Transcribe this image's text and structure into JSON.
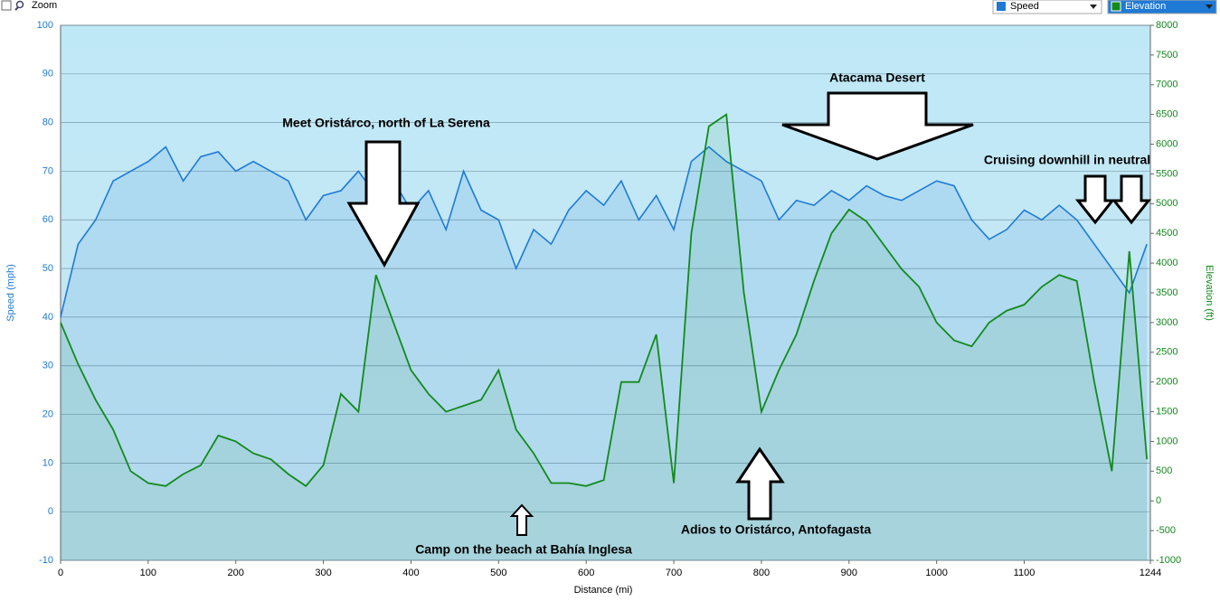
{
  "toolbar": {
    "zoom_label": "Zoom"
  },
  "chart_data": {
    "type": "line",
    "x_label": "Distance  (mi)",
    "y_label": "Speed (mph)",
    "y2_label": "Elevation (ft)",
    "x": [
      0,
      20,
      40,
      60,
      80,
      100,
      120,
      140,
      160,
      180,
      200,
      220,
      240,
      260,
      280,
      300,
      320,
      340,
      360,
      380,
      400,
      420,
      440,
      460,
      480,
      500,
      520,
      540,
      560,
      580,
      600,
      620,
      640,
      660,
      680,
      700,
      720,
      740,
      760,
      780,
      800,
      820,
      840,
      860,
      880,
      900,
      920,
      940,
      960,
      980,
      1000,
      1020,
      1040,
      1060,
      1080,
      1100,
      1120,
      1140,
      1160,
      1180,
      1200,
      1220,
      1240
    ],
    "series": [
      {
        "name": "Speed",
        "color": "#1f7ad6",
        "values": [
          40,
          55,
          60,
          68,
          70,
          72,
          75,
          68,
          73,
          74,
          70,
          72,
          70,
          68,
          60,
          65,
          66,
          70,
          65,
          68,
          62,
          66,
          58,
          70,
          62,
          60,
          50,
          58,
          55,
          62,
          66,
          63,
          68,
          60,
          65,
          58,
          72,
          75,
          72,
          70,
          68,
          60,
          64,
          63,
          66,
          64,
          67,
          65,
          64,
          66,
          68,
          67,
          60,
          56,
          58,
          62,
          60,
          63,
          60,
          55,
          50,
          45,
          55
        ]
      },
      {
        "name": "Elevation",
        "color": "#138a1c",
        "axis": "y2",
        "values": [
          3000,
          2300,
          1700,
          1200,
          500,
          300,
          250,
          450,
          600,
          1100,
          1000,
          800,
          700,
          450,
          250,
          600,
          1800,
          1500,
          3800,
          3000,
          2200,
          1800,
          1500,
          1600,
          1700,
          2200,
          1200,
          800,
          300,
          300,
          250,
          350,
          2000,
          2000,
          2800,
          300,
          4500,
          6300,
          6500,
          3500,
          1500,
          2200,
          2800,
          3700,
          4500,
          4900,
          4700,
          4300,
          3900,
          3600,
          3000,
          2700,
          2600,
          3000,
          3200,
          3300,
          3600,
          3800,
          3700,
          2000,
          500,
          4200,
          700
        ]
      }
    ],
    "xlim": [
      0,
      1244
    ],
    "xticks": [
      0,
      100,
      200,
      300,
      400,
      500,
      600,
      700,
      800,
      900,
      1000,
      1100,
      1244
    ],
    "ylim": [
      -10,
      100
    ],
    "yticks": [
      -10,
      0,
      10,
      20,
      30,
      40,
      50,
      60,
      70,
      80,
      90,
      100
    ],
    "y2lim": [
      -1000,
      8000
    ],
    "y2ticks": [
      -1000,
      -500,
      0,
      500,
      1000,
      1500,
      2000,
      2500,
      3000,
      3500,
      4000,
      4500,
      5000,
      5500,
      6000,
      6500,
      7000,
      7500,
      8000
    ],
    "grid": true,
    "annotations": [
      "Meet Oristárco, north of La Serena",
      "Atacama Desert",
      "Cruising downhill in neutral",
      "Camp on the beach at Bahía Inglesa",
      "Adios to Oristárco, Antofagasta"
    ]
  }
}
